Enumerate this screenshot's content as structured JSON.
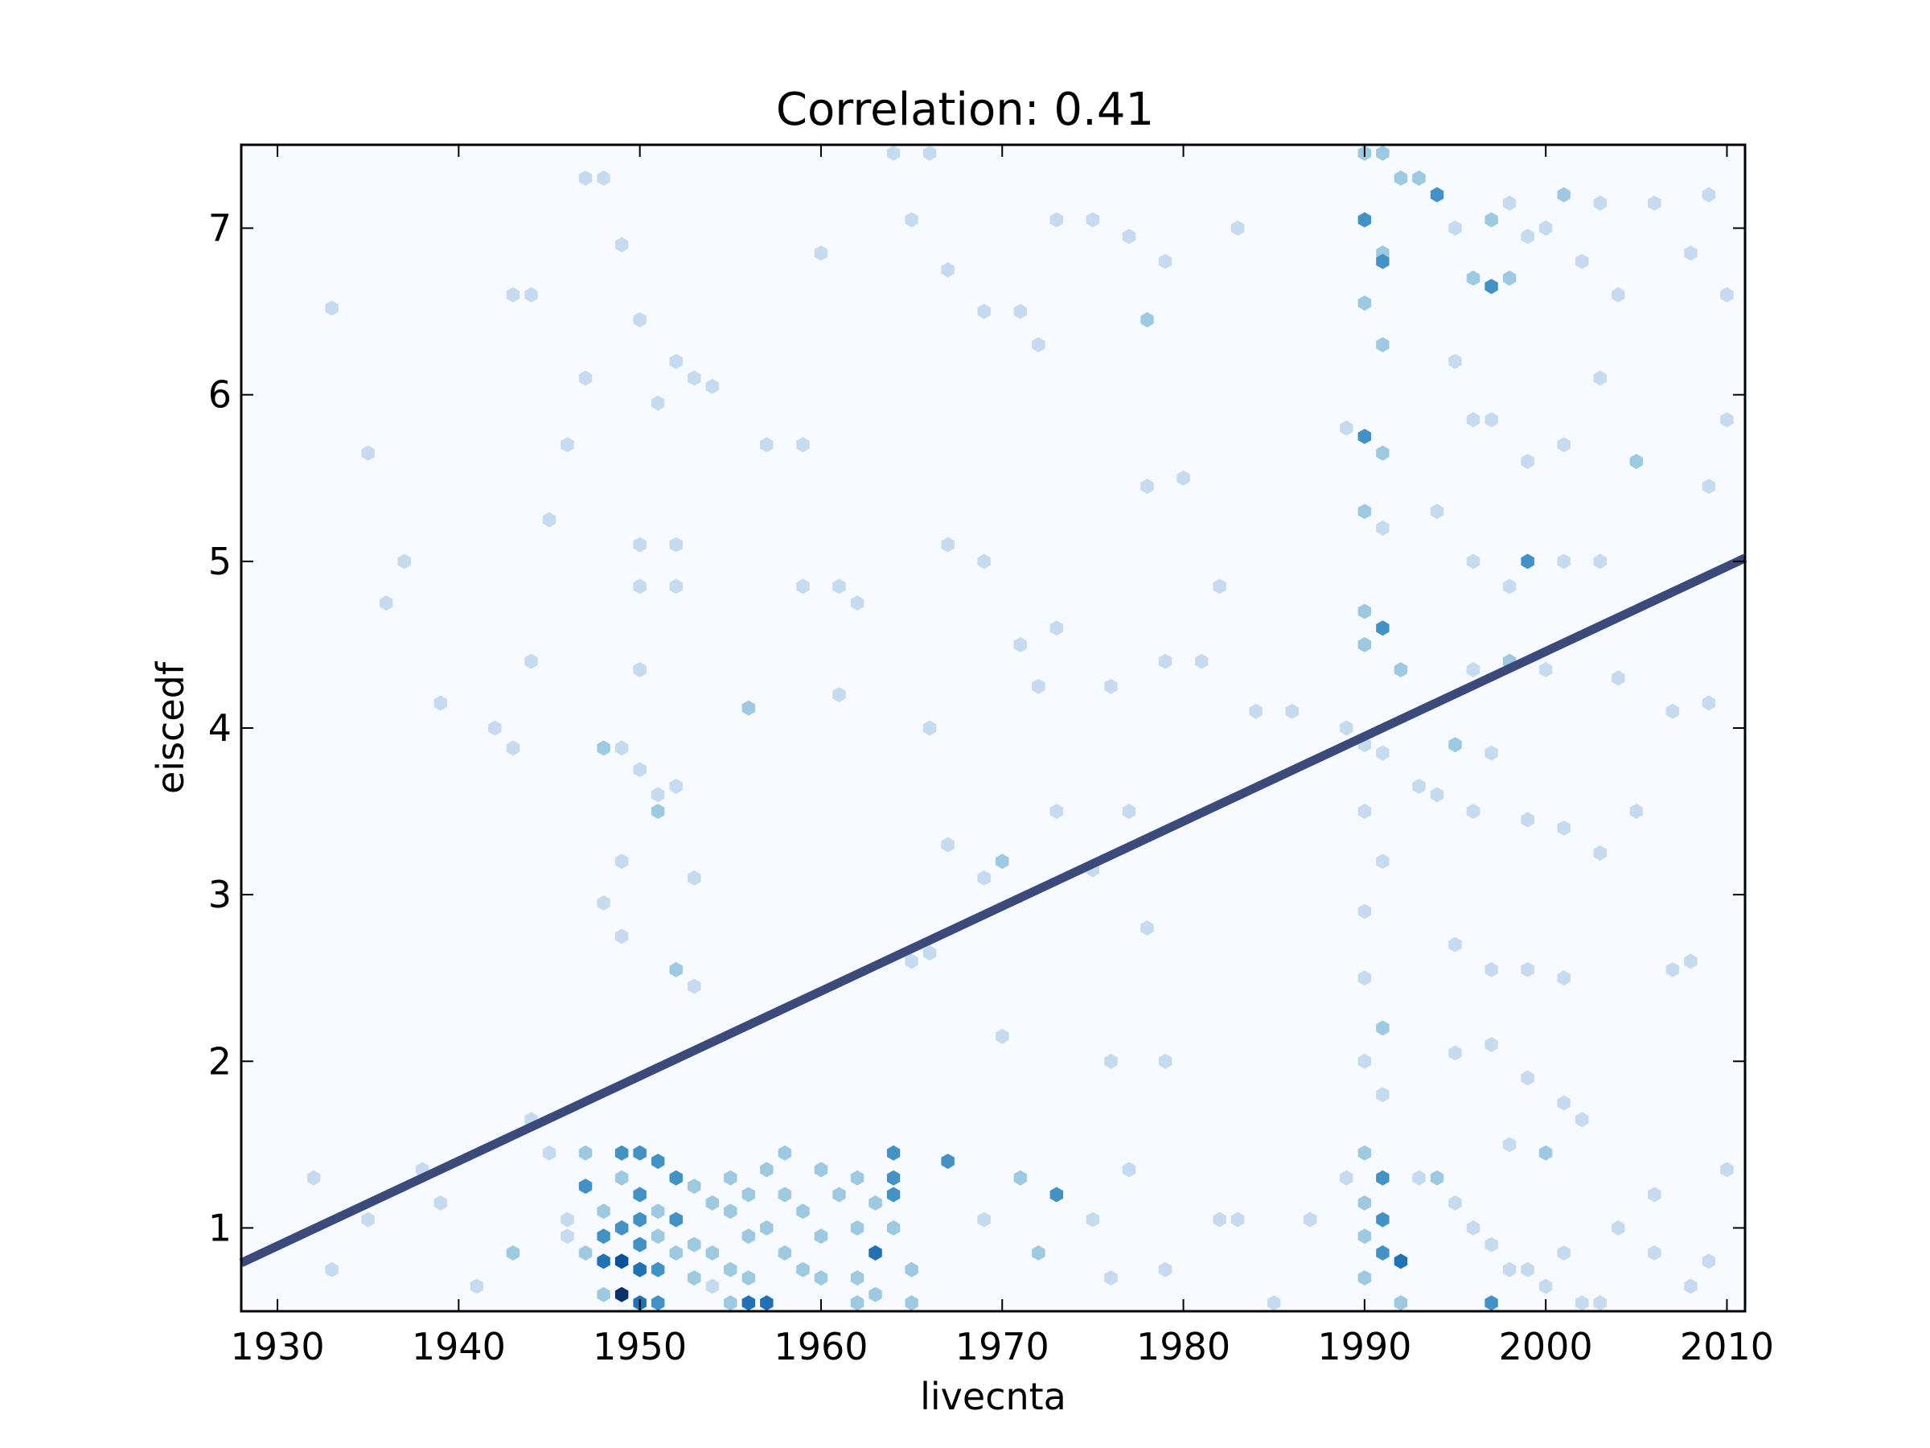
{
  "chart_data": {
    "type": "hexbin",
    "title": "Correlation: 0.41",
    "xlabel": "livecnta",
    "ylabel": "eiscedf",
    "xlim": [
      1928,
      2011
    ],
    "ylim": [
      0.5,
      7.5
    ],
    "xticks": [
      1930,
      1940,
      1950,
      1960,
      1970,
      1980,
      1990,
      2000,
      2010
    ],
    "xtick_labels": [
      "1930",
      "1940",
      "1950",
      "1960",
      "1970",
      "1980",
      "1990",
      "2000",
      "2010"
    ],
    "yticks": [
      1,
      2,
      3,
      4,
      5,
      6,
      7
    ],
    "ytick_labels": [
      "1",
      "2",
      "3",
      "4",
      "5",
      "6",
      "7"
    ],
    "colormap": [
      "#f7fbff",
      "#c6dbef",
      "#9ecae1",
      "#4292c6",
      "#2171b5",
      "#08519c",
      "#08306b"
    ],
    "background_color": "#f7fbff",
    "grid": false,
    "fit_line": {
      "x": [
        1928,
        2011
      ],
      "y": [
        0.79,
        5.02
      ],
      "color": "#3b4a7a"
    },
    "hexbins": [
      [
        1933,
        6.52,
        1
      ],
      [
        1936,
        4.75,
        1
      ],
      [
        1937,
        5.0,
        1
      ],
      [
        1935,
        5.65,
        1
      ],
      [
        1939,
        4.15,
        1
      ],
      [
        1942,
        4.0,
        1
      ],
      [
        1943,
        3.88,
        1
      ],
      [
        1944,
        4.4,
        1
      ],
      [
        1943,
        6.6,
        1
      ],
      [
        1944,
        6.6,
        1
      ],
      [
        1945,
        5.25,
        1
      ],
      [
        1946,
        5.7,
        1
      ],
      [
        1947,
        7.3,
        1
      ],
      [
        1948,
        7.3,
        1
      ],
      [
        1949,
        6.9,
        1
      ],
      [
        1950,
        6.45,
        1
      ],
      [
        1952,
        6.2,
        1
      ],
      [
        1951,
        5.95,
        1
      ],
      [
        1947,
        6.1,
        1
      ],
      [
        1953,
        6.1,
        1
      ],
      [
        1954,
        6.05,
        1
      ],
      [
        1950,
        5.1,
        1
      ],
      [
        1952,
        5.1,
        1
      ],
      [
        1950,
        4.85,
        1
      ],
      [
        1952,
        4.85,
        1
      ],
      [
        1950,
        4.35,
        1
      ],
      [
        1948,
        3.88,
        2
      ],
      [
        1949,
        3.88,
        1
      ],
      [
        1950,
        3.75,
        1
      ],
      [
        1951,
        3.6,
        1
      ],
      [
        1951,
        3.5,
        2
      ],
      [
        1952,
        3.65,
        1
      ],
      [
        1949,
        3.2,
        1
      ],
      [
        1953,
        3.1,
        1
      ],
      [
        1948,
        2.95,
        1
      ],
      [
        1949,
        2.75,
        1
      ],
      [
        1952,
        2.55,
        2
      ],
      [
        1953,
        2.45,
        1
      ],
      [
        1956,
        4.12,
        2
      ],
      [
        1957,
        5.7,
        1
      ],
      [
        1959,
        5.7,
        1
      ],
      [
        1959,
        4.85,
        1
      ],
      [
        1961,
        4.85,
        1
      ],
      [
        1962,
        4.75,
        1
      ],
      [
        1961,
        4.2,
        1
      ],
      [
        1960,
        6.85,
        1
      ],
      [
        1965,
        7.05,
        1
      ],
      [
        1966,
        7.45,
        1
      ],
      [
        1964,
        7.45,
        1
      ],
      [
        1967,
        6.75,
        1
      ],
      [
        1969,
        6.5,
        1
      ],
      [
        1971,
        6.5,
        1
      ],
      [
        1972,
        6.3,
        1
      ],
      [
        1973,
        7.05,
        1
      ],
      [
        1975,
        7.05,
        1
      ],
      [
        1977,
        6.95,
        1
      ],
      [
        1979,
        6.8,
        1
      ],
      [
        1978,
        6.45,
        2
      ],
      [
        1983,
        7.0,
        1
      ],
      [
        1967,
        5.1,
        1
      ],
      [
        1969,
        5.0,
        1
      ],
      [
        1971,
        4.5,
        1
      ],
      [
        1972,
        4.25,
        1
      ],
      [
        1973,
        4.6,
        1
      ],
      [
        1976,
        4.25,
        1
      ],
      [
        1979,
        4.4,
        1
      ],
      [
        1981,
        4.4,
        1
      ],
      [
        1984,
        4.1,
        1
      ],
      [
        1986,
        4.1,
        1
      ],
      [
        1978,
        5.45,
        1
      ],
      [
        1980,
        5.5,
        1
      ],
      [
        1982,
        4.85,
        1
      ],
      [
        1966,
        4.0,
        1
      ],
      [
        1967,
        3.3,
        1
      ],
      [
        1969,
        3.1,
        1
      ],
      [
        1970,
        3.2,
        2
      ],
      [
        1973,
        3.5,
        1
      ],
      [
        1975,
        3.15,
        1
      ],
      [
        1977,
        3.5,
        1
      ],
      [
        1978,
        2.8,
        1
      ],
      [
        1965,
        2.6,
        1
      ],
      [
        1966,
        2.65,
        1
      ],
      [
        1970,
        2.15,
        1
      ],
      [
        1976,
        2.0,
        1
      ],
      [
        1979,
        2.0,
        1
      ],
      [
        1990,
        7.45,
        2
      ],
      [
        1991,
        7.45,
        2
      ],
      [
        1992,
        7.3,
        2
      ],
      [
        1990,
        7.05,
        3
      ],
      [
        1991,
        6.85,
        2
      ],
      [
        1990,
        6.55,
        2
      ],
      [
        1991,
        6.8,
        3
      ],
      [
        1991,
        6.3,
        2
      ],
      [
        1990,
        5.75,
        3
      ],
      [
        1991,
        5.65,
        2
      ],
      [
        1989,
        5.8,
        1
      ],
      [
        1990,
        5.3,
        2
      ],
      [
        1991,
        5.2,
        1
      ],
      [
        1990,
        4.7,
        2
      ],
      [
        1991,
        4.6,
        3
      ],
      [
        1990,
        4.5,
        2
      ],
      [
        1992,
        4.35,
        2
      ],
      [
        1989,
        4.0,
        1
      ],
      [
        1990,
        3.9,
        1
      ],
      [
        1991,
        3.85,
        1
      ],
      [
        1990,
        3.5,
        1
      ],
      [
        1991,
        3.2,
        1
      ],
      [
        1990,
        2.9,
        1
      ],
      [
        1990,
        2.5,
        1
      ],
      [
        1991,
        2.2,
        2
      ],
      [
        1990,
        2.0,
        1
      ],
      [
        1991,
        1.8,
        1
      ],
      [
        1990,
        1.45,
        2
      ],
      [
        1991,
        1.3,
        3
      ],
      [
        1990,
        1.15,
        2
      ],
      [
        1991,
        1.05,
        3
      ],
      [
        1990,
        0.95,
        2
      ],
      [
        1991,
        0.85,
        3
      ],
      [
        1992,
        0.8,
        4
      ],
      [
        1990,
        0.7,
        2
      ],
      [
        1992,
        0.55,
        2
      ],
      [
        1989,
        1.3,
        1
      ],
      [
        1993,
        7.3,
        2
      ],
      [
        1994,
        7.2,
        3
      ],
      [
        1995,
        7.0,
        1
      ],
      [
        1996,
        6.7,
        2
      ],
      [
        1997,
        6.65,
        3
      ],
      [
        1998,
        6.7,
        2
      ],
      [
        1999,
        6.95,
        1
      ],
      [
        1997,
        7.05,
        2
      ],
      [
        1998,
        7.15,
        1
      ],
      [
        2000,
        7.0,
        1
      ],
      [
        2001,
        7.2,
        2
      ],
      [
        2002,
        6.8,
        1
      ],
      [
        2003,
        7.15,
        1
      ],
      [
        2004,
        6.6,
        1
      ],
      [
        2006,
        7.15,
        1
      ],
      [
        2008,
        6.85,
        1
      ],
      [
        2009,
        7.2,
        1
      ],
      [
        2010,
        6.6,
        1
      ],
      [
        1995,
        6.2,
        1
      ],
      [
        1996,
        5.85,
        1
      ],
      [
        1997,
        5.85,
        1
      ],
      [
        1999,
        5.6,
        1
      ],
      [
        2001,
        5.7,
        1
      ],
      [
        2003,
        6.1,
        1
      ],
      [
        2005,
        5.6,
        2
      ],
      [
        2009,
        5.45,
        1
      ],
      [
        2010,
        5.85,
        1
      ],
      [
        1994,
        5.3,
        1
      ],
      [
        1996,
        5.0,
        1
      ],
      [
        1998,
        4.85,
        1
      ],
      [
        1999,
        5.0,
        3
      ],
      [
        2001,
        5.0,
        1
      ],
      [
        2003,
        5.0,
        1
      ],
      [
        1996,
        4.35,
        1
      ],
      [
        1998,
        4.4,
        2
      ],
      [
        2000,
        4.35,
        1
      ],
      [
        2004,
        4.3,
        1
      ],
      [
        2007,
        4.1,
        1
      ],
      [
        2009,
        4.15,
        1
      ],
      [
        1995,
        3.9,
        2
      ],
      [
        1997,
        3.85,
        1
      ],
      [
        1993,
        3.65,
        1
      ],
      [
        1994,
        3.6,
        1
      ],
      [
        1996,
        3.5,
        1
      ],
      [
        1999,
        3.45,
        1
      ],
      [
        2001,
        3.4,
        1
      ],
      [
        2003,
        3.25,
        1
      ],
      [
        2005,
        3.5,
        1
      ],
      [
        1995,
        2.7,
        1
      ],
      [
        1997,
        2.55,
        1
      ],
      [
        1999,
        2.55,
        1
      ],
      [
        2001,
        2.5,
        1
      ],
      [
        2007,
        2.55,
        1
      ],
      [
        2008,
        2.6,
        1
      ],
      [
        1995,
        2.05,
        1
      ],
      [
        1997,
        2.1,
        1
      ],
      [
        1999,
        1.9,
        1
      ],
      [
        2001,
        1.75,
        1
      ],
      [
        2002,
        1.65,
        1
      ],
      [
        1998,
        1.5,
        1
      ],
      [
        2000,
        1.45,
        2
      ],
      [
        1993,
        1.3,
        1
      ],
      [
        1994,
        1.3,
        2
      ],
      [
        1995,
        1.15,
        1
      ],
      [
        1996,
        1.0,
        1
      ],
      [
        1997,
        0.9,
        1
      ],
      [
        1998,
        0.75,
        1
      ],
      [
        1997,
        0.55,
        3
      ],
      [
        1999,
        0.75,
        1
      ],
      [
        2000,
        0.65,
        1
      ],
      [
        2001,
        0.85,
        1
      ],
      [
        2002,
        0.55,
        1
      ],
      [
        2003,
        0.55,
        1
      ],
      [
        2004,
        1.0,
        1
      ],
      [
        2006,
        0.85,
        1
      ],
      [
        2006,
        1.2,
        1
      ],
      [
        2008,
        0.65,
        1
      ],
      [
        2010,
        1.35,
        1
      ],
      [
        2009,
        0.8,
        1
      ],
      [
        1932,
        1.3,
        1
      ],
      [
        1933,
        0.75,
        1
      ],
      [
        1935,
        1.05,
        1
      ],
      [
        1938,
        1.35,
        1
      ],
      [
        1939,
        1.15,
        1
      ],
      [
        1941,
        0.65,
        1
      ],
      [
        1943,
        0.85,
        2
      ],
      [
        1944,
        1.65,
        1
      ],
      [
        1945,
        1.45,
        1
      ],
      [
        1946,
        1.05,
        1
      ],
      [
        1946,
        0.95,
        1
      ],
      [
        1947,
        1.45,
        2
      ],
      [
        1947,
        1.25,
        3
      ],
      [
        1947,
        0.85,
        2
      ],
      [
        1948,
        1.1,
        2
      ],
      [
        1948,
        0.95,
        3
      ],
      [
        1948,
        0.8,
        4
      ],
      [
        1948,
        0.6,
        2
      ],
      [
        1949,
        1.45,
        3
      ],
      [
        1949,
        1.3,
        2
      ],
      [
        1949,
        1.0,
        3
      ],
      [
        1949,
        0.8,
        5
      ],
      [
        1949,
        0.6,
        6
      ],
      [
        1950,
        1.45,
        3
      ],
      [
        1950,
        1.2,
        3
      ],
      [
        1950,
        1.05,
        3
      ],
      [
        1950,
        0.9,
        3
      ],
      [
        1950,
        0.75,
        4
      ],
      [
        1950,
        0.55,
        4
      ],
      [
        1951,
        1.4,
        3
      ],
      [
        1951,
        1.1,
        2
      ],
      [
        1951,
        0.95,
        2
      ],
      [
        1951,
        0.75,
        3
      ],
      [
        1951,
        0.55,
        3
      ],
      [
        1952,
        1.3,
        3
      ],
      [
        1952,
        1.05,
        3
      ],
      [
        1952,
        0.85,
        2
      ],
      [
        1953,
        1.25,
        2
      ],
      [
        1953,
        0.9,
        2
      ],
      [
        1953,
        0.7,
        2
      ],
      [
        1954,
        1.15,
        2
      ],
      [
        1954,
        0.85,
        2
      ],
      [
        1954,
        0.65,
        1
      ],
      [
        1955,
        1.3,
        2
      ],
      [
        1955,
        1.1,
        2
      ],
      [
        1955,
        0.75,
        2
      ],
      [
        1955,
        0.55,
        2
      ],
      [
        1956,
        1.2,
        2
      ],
      [
        1956,
        0.95,
        2
      ],
      [
        1956,
        0.7,
        2
      ],
      [
        1956,
        0.55,
        4
      ],
      [
        1957,
        1.35,
        2
      ],
      [
        1957,
        1.0,
        2
      ],
      [
        1957,
        0.55,
        4
      ],
      [
        1958,
        1.45,
        2
      ],
      [
        1958,
        1.2,
        2
      ],
      [
        1958,
        0.85,
        2
      ],
      [
        1959,
        1.1,
        2
      ],
      [
        1959,
        0.75,
        2
      ],
      [
        1960,
        1.35,
        2
      ],
      [
        1960,
        0.95,
        2
      ],
      [
        1960,
        0.7,
        2
      ],
      [
        1961,
        1.2,
        2
      ],
      [
        1962,
        1.3,
        2
      ],
      [
        1962,
        1.0,
        2
      ],
      [
        1962,
        0.7,
        2
      ],
      [
        1962,
        0.55,
        2
      ],
      [
        1963,
        1.15,
        2
      ],
      [
        1963,
        0.85,
        4
      ],
      [
        1963,
        0.6,
        2
      ],
      [
        1964,
        1.3,
        3
      ],
      [
        1964,
        1.2,
        3
      ],
      [
        1964,
        1.0,
        2
      ],
      [
        1964,
        1.45,
        3
      ],
      [
        1965,
        0.75,
        2
      ],
      [
        1965,
        0.55,
        2
      ],
      [
        1967,
        1.4,
        3
      ],
      [
        1969,
        1.05,
        1
      ],
      [
        1971,
        1.3,
        2
      ],
      [
        1972,
        0.85,
        2
      ],
      [
        1973,
        1.2,
        3
      ],
      [
        1975,
        1.05,
        1
      ],
      [
        1976,
        0.7,
        1
      ],
      [
        1977,
        1.35,
        1
      ],
      [
        1979,
        0.75,
        1
      ],
      [
        1982,
        1.05,
        1
      ],
      [
        1983,
        1.05,
        1
      ],
      [
        1985,
        0.55,
        1
      ],
      [
        1987,
        1.05,
        1
      ]
    ]
  }
}
